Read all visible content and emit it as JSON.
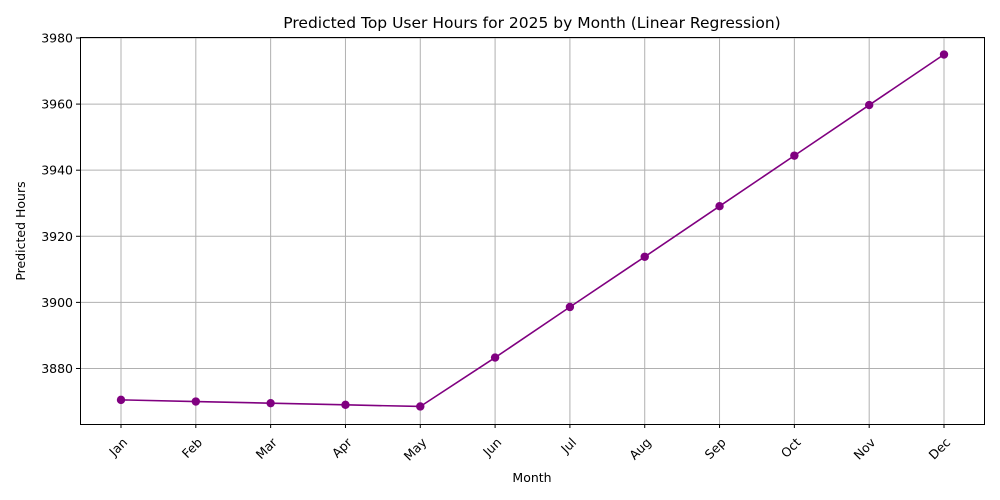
{
  "chart_data": {
    "type": "line",
    "title": "Predicted Top User Hours for 2025 by Month (Linear Regression)",
    "xlabel": "Month",
    "ylabel": "Predicted Hours",
    "categories": [
      "Jan",
      "Feb",
      "Mar",
      "Apr",
      "May",
      "Jun",
      "Jul",
      "Aug",
      "Sep",
      "Oct",
      "Nov",
      "Dec"
    ],
    "series": [
      {
        "values": [
          3870.5,
          3870.0,
          3869.5,
          3869.0,
          3868.5,
          3883.3,
          3898.6,
          3913.8,
          3929.1,
          3944.4,
          3959.7,
          3975.0
        ],
        "color": "#800080",
        "marker": "circle"
      }
    ],
    "yticks": [
      3880,
      3900,
      3920,
      3940,
      3960,
      3980
    ],
    "ylim": [
      3863.2,
      3980.3
    ],
    "grid": true,
    "xtick_rotation": 45
  }
}
